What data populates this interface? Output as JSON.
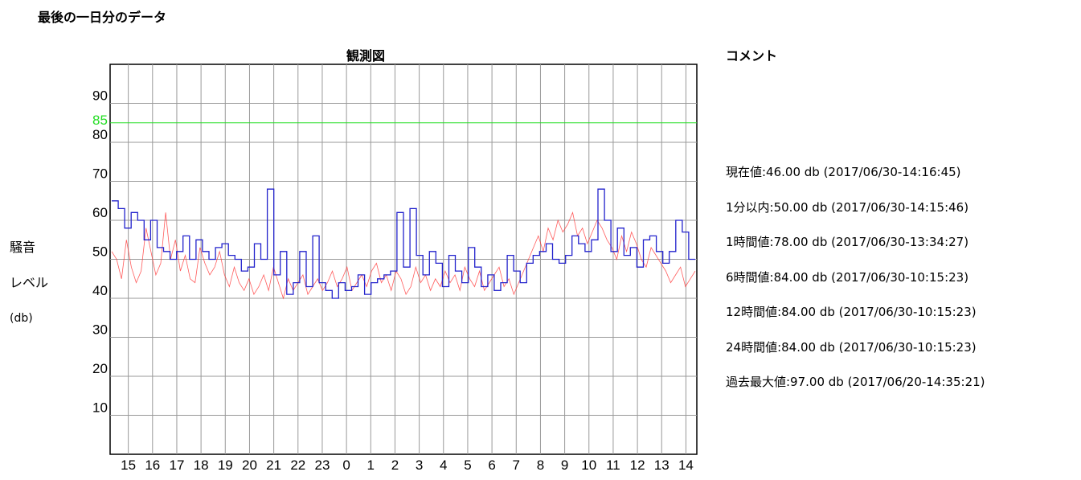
{
  "page": {
    "title": "最後の一日分のデータ"
  },
  "chart_data": {
    "type": "line",
    "title": "観測図",
    "ylabel_lines": [
      "騒音",
      "レベル",
      "(db)"
    ],
    "ylim": [
      0,
      100
    ],
    "y_ticks": [
      10,
      20,
      30,
      40,
      50,
      60,
      70,
      80,
      90
    ],
    "threshold": {
      "value": 85,
      "label": "85",
      "color": "#22dd22"
    },
    "x_ticks": [
      "15",
      "16",
      "17",
      "18",
      "19",
      "20",
      "21",
      "22",
      "23",
      "0",
      "1",
      "2",
      "3",
      "4",
      "5",
      "6",
      "7",
      "8",
      "9",
      "10",
      "11",
      "12",
      "13",
      "14"
    ],
    "grid": true,
    "series": [
      {
        "role": "raw-samples",
        "color": "#ff3333",
        "values": [
          52,
          50,
          45,
          55,
          48,
          44,
          47,
          58,
          52,
          46,
          49,
          62,
          50,
          55,
          47,
          51,
          45,
          44,
          53,
          49,
          46,
          48,
          52,
          46,
          43,
          48,
          44,
          42,
          45,
          41,
          43,
          46,
          42,
          48,
          44,
          40,
          45,
          42,
          44,
          46,
          41,
          43,
          45,
          42,
          44,
          47,
          43,
          45,
          48,
          42,
          44,
          46,
          43,
          47,
          49,
          44,
          46,
          42,
          47,
          45,
          41,
          43,
          48,
          44,
          46,
          42,
          45,
          43,
          47,
          44,
          46,
          42,
          48,
          45,
          43,
          47,
          42,
          44,
          46,
          48,
          43,
          45,
          41,
          44,
          47,
          50,
          53,
          56,
          52,
          58,
          55,
          60,
          57,
          59,
          62,
          56,
          58,
          54,
          57,
          60,
          58,
          55,
          53,
          50,
          56,
          52,
          57,
          54,
          50,
          48,
          53,
          51,
          49,
          47,
          44,
          46,
          48,
          43,
          45,
          47
        ]
      },
      {
        "role": "averaged-step",
        "color": "#2222cc",
        "values": [
          65,
          63,
          58,
          62,
          60,
          55,
          60,
          53,
          52,
          50,
          52,
          56,
          50,
          55,
          52,
          50,
          53,
          54,
          51,
          50,
          47,
          48,
          54,
          50,
          68,
          46,
          52,
          41,
          44,
          52,
          43,
          56,
          44,
          42,
          40,
          44,
          42,
          43,
          46,
          41,
          44,
          45,
          46,
          47,
          62,
          48,
          63,
          51,
          46,
          52,
          49,
          43,
          51,
          47,
          44,
          53,
          48,
          43,
          46,
          42,
          44,
          51,
          47,
          44,
          49,
          51,
          52,
          54,
          50,
          49,
          51,
          56,
          54,
          52,
          55,
          68,
          60,
          52,
          58,
          51,
          53,
          48,
          55,
          56,
          52,
          49,
          52,
          60,
          57,
          50
        ]
      }
    ]
  },
  "comment": {
    "title": "コメント",
    "stats": [
      "現在値:46.00 db (2017/06/30-14:16:45)",
      "1分以内:50.00 db (2017/06/30-14:15:46)",
      "1時間値:78.00 db (2017/06/30-13:34:27)",
      "6時間値:84.00 db (2017/06/30-10:15:23)",
      "12時間値:84.00 db (2017/06/30-10:15:23)",
      "24時間値:84.00 db (2017/06/30-10:15:23)",
      "過去最大値:97.00 db (2017/06/20-14:35:21)"
    ]
  }
}
